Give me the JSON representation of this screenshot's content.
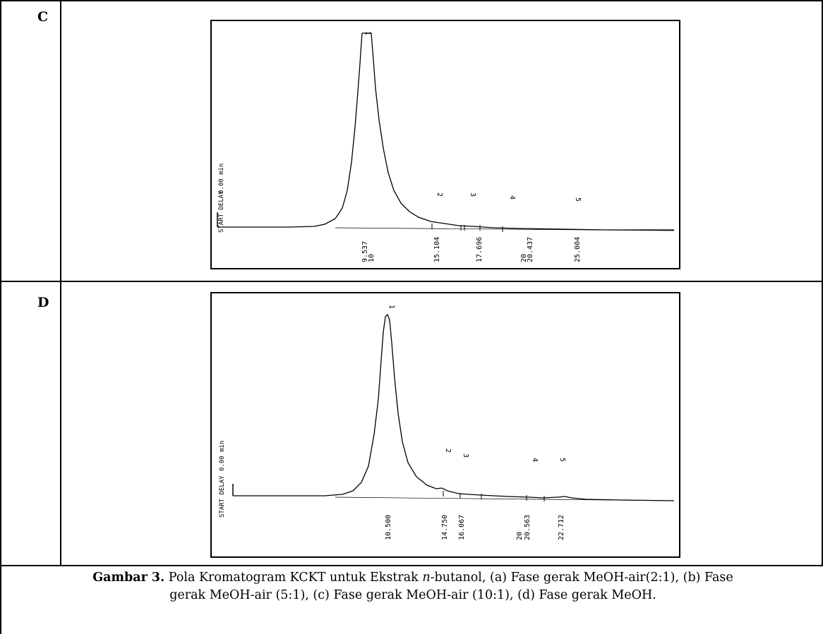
{
  "panels": [
    {
      "label": "C",
      "start_delay": "START DELAY",
      "delay_value": "0.00 min",
      "peaks": [
        "1",
        "2",
        "3",
        "4",
        "5"
      ],
      "retention_times": [
        "9.537",
        "10",
        "15.104",
        "17.696",
        "20",
        "20.437",
        "25.004"
      ]
    },
    {
      "label": "D",
      "start_delay": "START DELAY",
      "delay_value": "0.00 min",
      "peaks": [
        "1",
        "2",
        "3",
        "4",
        "5"
      ],
      "retention_times": [
        "10.500",
        "14.750",
        "16.067",
        "20",
        "20.563",
        "22.712"
      ]
    }
  ],
  "caption": {
    "label": "Gambar 3.",
    "part1": " Pola Kromatogram KCKT untuk Ekstrak ",
    "italic": "n",
    "part2": "-butanol, (a) Fase gerak MeOH-air(2:1), (b) Fase",
    "line2": "gerak MeOH-air (5:1), (c) Fase gerak MeOH-air (10:1), (d) Fase gerak MeOH."
  }
}
